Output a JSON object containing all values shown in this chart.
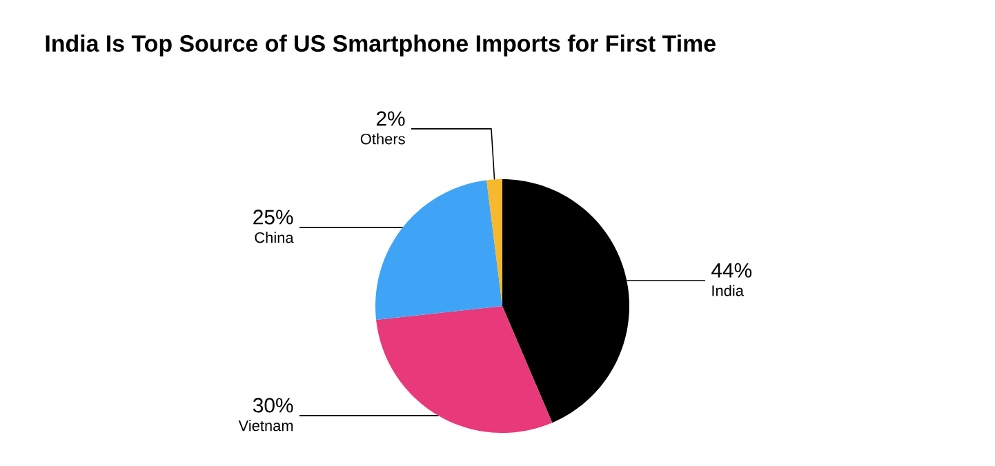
{
  "chart_data": {
    "type": "pie",
    "title": "India Is Top Source of US Smartphone Imports for First Time",
    "categories": [
      "India",
      "Vietnam",
      "China",
      "Others"
    ],
    "values": [
      44,
      30,
      25,
      2
    ],
    "value_labels": [
      "44%",
      "30%",
      "25%",
      "2%"
    ],
    "colors": [
      "#000000",
      "#e8397a",
      "#3fa4f5",
      "#f5b82e"
    ]
  }
}
